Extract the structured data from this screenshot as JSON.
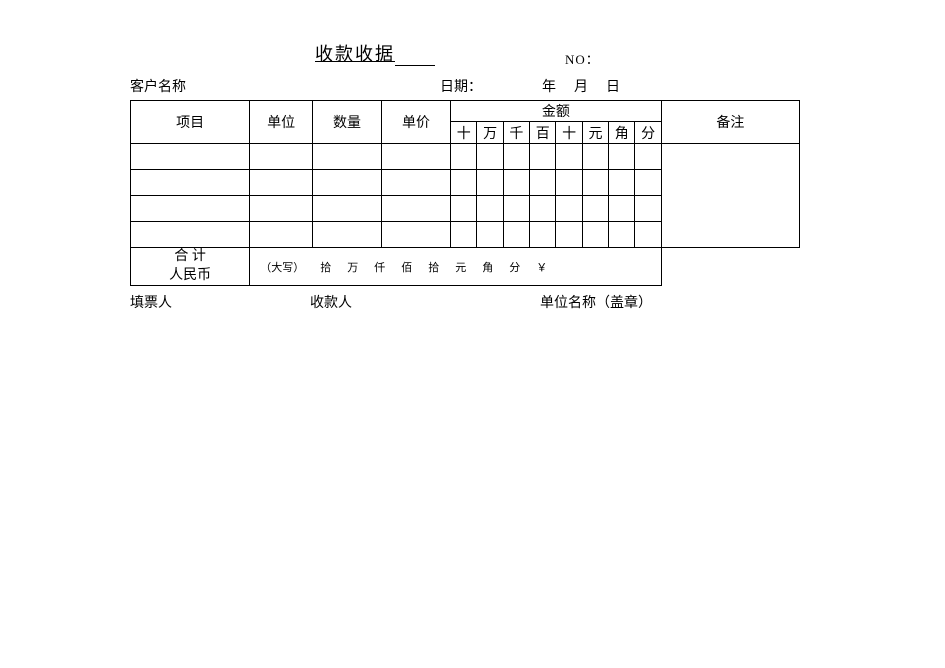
{
  "title": "收款收据",
  "no_label": "NO：",
  "header": {
    "customer_label": "客户名称",
    "date_label": "日期：",
    "year": "年",
    "month": "月",
    "day": "日"
  },
  "columns": {
    "item": "项目",
    "unit": "单位",
    "qty": "数量",
    "price": "单价",
    "amount": "金额",
    "remark": "备注",
    "digits": [
      "十",
      "万",
      "千",
      "百",
      "十",
      "元",
      "角",
      "分"
    ]
  },
  "total": {
    "label_line1": "合 计",
    "label_line2": "人民币",
    "cn_prefix": "（大写）",
    "units": [
      "拾",
      "万",
      "仟",
      "佰",
      "拾",
      "元",
      "角",
      "分",
      "￥"
    ]
  },
  "footer": {
    "writer": "填票人",
    "payee": "收款人",
    "stamp": "单位名称（盖章）"
  }
}
